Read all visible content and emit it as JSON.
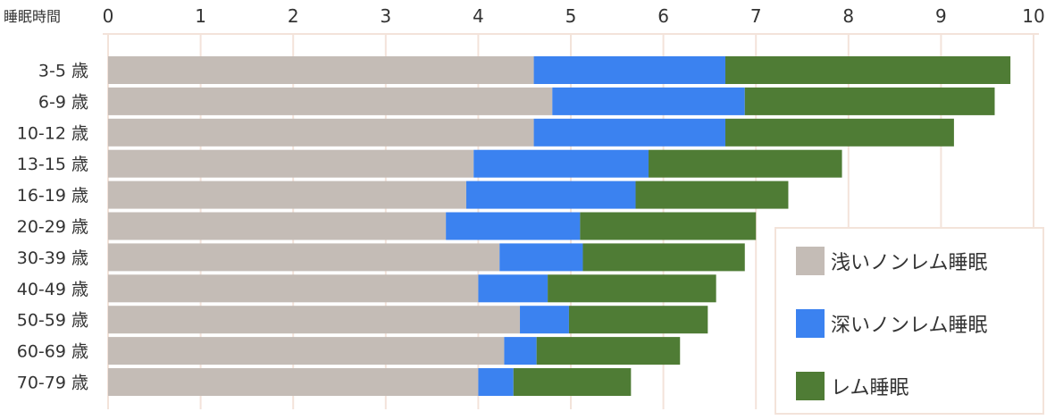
{
  "chart_data": {
    "type": "bar",
    "orientation": "horizontal",
    "stacked": true,
    "title": "",
    "xlabel": "睡眠時間",
    "ylabel": "",
    "xlim": [
      0,
      10
    ],
    "xticks": [
      "0",
      "1",
      "2",
      "3",
      "4",
      "5",
      "6",
      "7",
      "8",
      "9",
      "10"
    ],
    "grid": true,
    "legend_position": "bottom-right",
    "categories": [
      "3-5 歳",
      "6-9 歳",
      "10-12 歳",
      "13-15 歳",
      "16-19 歳",
      "20-29 歳",
      "30-39 歳",
      "40-49 歳",
      "50-59 歳",
      "60-69 歳",
      "70-79 歳"
    ],
    "series": [
      {
        "name": "浅いノンレム睡眠",
        "color": "#c4bcb6",
        "values": [
          4.6,
          4.8,
          4.6,
          3.95,
          3.87,
          3.65,
          4.23,
          4.0,
          4.45,
          4.28,
          4.0
        ]
      },
      {
        "name": "深いノンレム睡眠",
        "color": "#3b82f0",
        "values": [
          2.07,
          2.08,
          2.07,
          1.89,
          1.83,
          1.45,
          0.9,
          0.75,
          0.53,
          0.35,
          0.38
        ]
      },
      {
        "name": "レム睡眠",
        "color": "#4f7c35",
        "values": [
          3.08,
          2.7,
          2.47,
          2.09,
          1.65,
          1.9,
          1.75,
          1.82,
          1.5,
          1.55,
          1.27
        ]
      }
    ]
  }
}
